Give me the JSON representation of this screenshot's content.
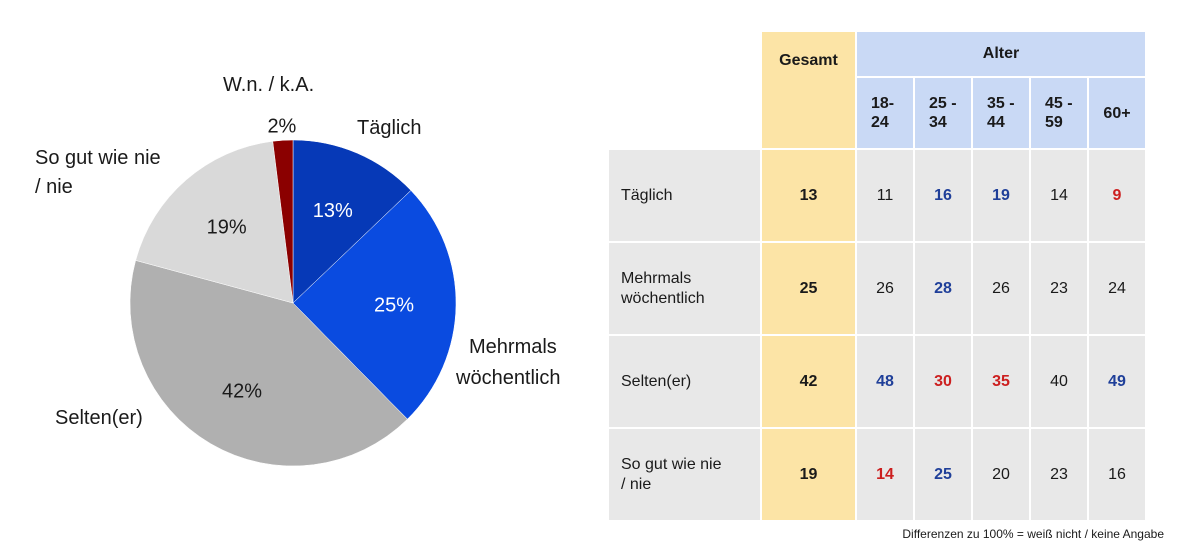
{
  "chart_data": [
    {
      "type": "pie",
      "slices": [
        {
          "label": "Täglich",
          "value": 13,
          "value_label": "13%",
          "color": "#0639b7"
        },
        {
          "label": "Mehrmals wöchentlich",
          "value": 25,
          "value_label": "25%",
          "color": "#0a4be0"
        },
        {
          "label": "Selten(er)",
          "value": 42,
          "value_label": "42%",
          "color": "#b0b0b0"
        },
        {
          "label": "So gut wie nie / nie",
          "value": 19,
          "value_label": "19%",
          "color": "#d9d9d9"
        },
        {
          "label": "W.n. / k.A.",
          "value": 2,
          "value_label": "2%",
          "color": "#8b0000"
        }
      ],
      "start": "12 o'clock",
      "direction": "clockwise",
      "category_labels": {
        "taeglich": "Täglich",
        "mehrmals_1": "Mehrmals",
        "mehrmals_2": "wöchentlich",
        "selten": "Selten(er)",
        "sogut_1": "So gut wie nie",
        "sogut_2": "/ nie",
        "wn": "W.n. / k.A."
      }
    },
    {
      "type": "table",
      "header": {
        "gesamt": "Gesamt",
        "group": "Alter",
        "age_groups": [
          {
            "line1": "18-",
            "line2": "24"
          },
          {
            "line1": "25 -",
            "line2": "34"
          },
          {
            "line1": "35 -",
            "line2": "44"
          },
          {
            "line1": "45 -",
            "line2": "59"
          },
          {
            "line1": "60+",
            "line2": ""
          }
        ]
      },
      "rows": [
        {
          "line1": "Täglich",
          "line2": "",
          "total": "13",
          "values": [
            {
              "v": "11",
              "hl": "none"
            },
            {
              "v": "16",
              "hl": "higher"
            },
            {
              "v": "19",
              "hl": "higher"
            },
            {
              "v": "14",
              "hl": "none"
            },
            {
              "v": "9",
              "hl": "lower"
            }
          ]
        },
        {
          "line1": "Mehrmals",
          "line2": "wöchentlich",
          "total": "25",
          "values": [
            {
              "v": "26",
              "hl": "none"
            },
            {
              "v": "28",
              "hl": "higher"
            },
            {
              "v": "26",
              "hl": "none"
            },
            {
              "v": "23",
              "hl": "none"
            },
            {
              "v": "24",
              "hl": "none"
            }
          ]
        },
        {
          "line1": "Selten(er)",
          "line2": "",
          "total": "42",
          "values": [
            {
              "v": "48",
              "hl": "higher"
            },
            {
              "v": "30",
              "hl": "lower"
            },
            {
              "v": "35",
              "hl": "lower"
            },
            {
              "v": "40",
              "hl": "none"
            },
            {
              "v": "49",
              "hl": "higher"
            }
          ]
        },
        {
          "line1": "So gut wie nie",
          "line2": "/ nie",
          "total": "19",
          "values": [
            {
              "v": "14",
              "hl": "lower"
            },
            {
              "v": "25",
              "hl": "higher"
            },
            {
              "v": "20",
              "hl": "none"
            },
            {
              "v": "23",
              "hl": "none"
            },
            {
              "v": "16",
              "hl": "none"
            }
          ]
        }
      ],
      "highlight_colors": {
        "higher": "#1f3f99",
        "lower": "#cc1f1f",
        "none": "#1a1a1a"
      }
    }
  ],
  "footnote": "Differenzen zu 100% = weiß nicht / keine Angabe"
}
